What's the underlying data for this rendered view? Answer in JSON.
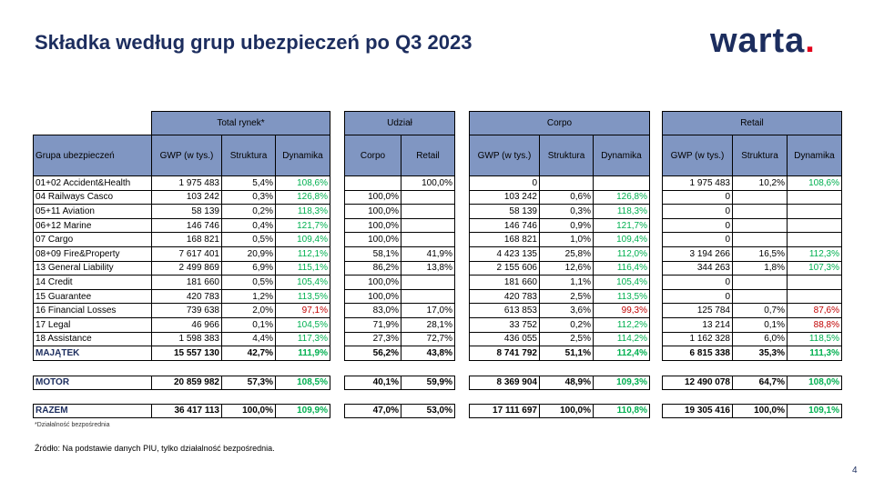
{
  "header": {
    "title": "Składka według grup ubezpieczeń po Q3 2023",
    "logo": "warta",
    "logo_dot": "."
  },
  "table": {
    "group_headers": [
      "Total rynek*",
      "Udział",
      "Corpo",
      "Retail"
    ],
    "columns": [
      "Grupa ubezpieczeń",
      "GWP (w tys.)",
      "Struktura",
      "Dynamika",
      "Corpo",
      "Retail",
      "GWP (w tys.)",
      "Struktura",
      "Dynamika",
      "GWP (w tys.)",
      "Struktura",
      "Dynamika"
    ],
    "colors": {
      "up": "#00b050",
      "down": "#c00000"
    },
    "rows": [
      [
        "01+02 Accident&Health",
        "1 975 483",
        "5,4%",
        "108,6%",
        null,
        "100,0%",
        "0",
        null,
        null,
        "1 975 483",
        "10,2%",
        "108,6%"
      ],
      [
        "04 Railways Casco",
        "103 242",
        "0,3%",
        "126,8%",
        "100,0%",
        null,
        "103 242",
        "0,6%",
        "126,8%",
        "0",
        null,
        null
      ],
      [
        "05+11 Aviation",
        "58 139",
        "0,2%",
        "118,3%",
        "100,0%",
        null,
        "58 139",
        "0,3%",
        "118,3%",
        "0",
        null,
        null
      ],
      [
        "06+12 Marine",
        "146 746",
        "0,4%",
        "121,7%",
        "100,0%",
        null,
        "146 746",
        "0,9%",
        "121,7%",
        "0",
        null,
        null
      ],
      [
        "07 Cargo",
        "168 821",
        "0,5%",
        "109,4%",
        "100,0%",
        null,
        "168 821",
        "1,0%",
        "109,4%",
        "0",
        null,
        null
      ],
      [
        "08+09 Fire&Property",
        "7 617 401",
        "20,9%",
        "112,1%",
        "58,1%",
        "41,9%",
        "4 423 135",
        "25,8%",
        "112,0%",
        "3 194 266",
        "16,5%",
        "112,3%"
      ],
      [
        "13 General Liability",
        "2 499 869",
        "6,9%",
        "115,1%",
        "86,2%",
        "13,8%",
        "2 155 606",
        "12,6%",
        "116,4%",
        "344 263",
        "1,8%",
        "107,3%"
      ],
      [
        "14 Credit",
        "181 660",
        "0,5%",
        "105,4%",
        "100,0%",
        null,
        "181 660",
        "1,1%",
        "105,4%",
        "0",
        null,
        null
      ],
      [
        "15 Guarantee",
        "420 783",
        "1,2%",
        "113,5%",
        "100,0%",
        null,
        "420 783",
        "2,5%",
        "113,5%",
        "0",
        null,
        null
      ],
      [
        "16 Financial Losses",
        "739 638",
        "2,0%",
        "97,1%",
        "83,0%",
        "17,0%",
        "613 853",
        "3,6%",
        "99,3%",
        "125 784",
        "0,7%",
        "87,6%"
      ],
      [
        "17 Legal",
        "46 966",
        "0,1%",
        "104,5%",
        "71,9%",
        "28,1%",
        "33 752",
        "0,2%",
        "112,2%",
        "13 214",
        "0,1%",
        "88,8%"
      ],
      [
        "18 Assistance",
        "1 598 383",
        "4,4%",
        "117,3%",
        "27,3%",
        "72,7%",
        "436 055",
        "2,5%",
        "114,2%",
        "1 162 328",
        "6,0%",
        "118,5%"
      ],
      [
        "MAJĄTEK",
        "15 557 130",
        "42,7%",
        "111,9%",
        "56,2%",
        "43,8%",
        "8 741 792",
        "51,1%",
        "112,4%",
        "6 815 338",
        "35,3%",
        "111,3%"
      ],
      [
        "MOTOR",
        "20 859 982",
        "57,3%",
        "108,5%",
        "40,1%",
        "59,9%",
        "8 369 904",
        "48,9%",
        "109,3%",
        "12 490 078",
        "64,7%",
        "108,0%"
      ],
      [
        "RAZEM",
        "36 417 113",
        "100,0%",
        "109,9%",
        "47,0%",
        "53,0%",
        "17 111 697",
        "100,0%",
        "110,8%",
        "19 305 416",
        "100,0%",
        "109,1%"
      ]
    ]
  },
  "footnote": "*Działalność bezpośrednia",
  "source": "Źródło: Na podstawie danych PIU, tylko działalność bezpośrednia.",
  "page_number": "4"
}
